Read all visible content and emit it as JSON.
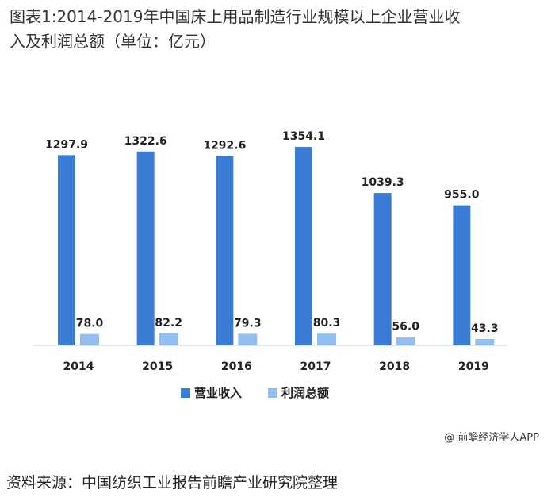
{
  "title_line1": "图表1:2014-2019年中国床上用品制造行业规模以上企业营业收",
  "title_line2": "入及利润总额（单位：亿元）",
  "chart_data": {
    "type": "bar",
    "categories": [
      "2014",
      "2015",
      "2016",
      "2017",
      "2018",
      "2019"
    ],
    "series": [
      {
        "name": "营业收入",
        "color": "#3a7bd5",
        "values": [
          1297.9,
          1322.6,
          1292.6,
          1354.1,
          1039.3,
          955.0
        ],
        "labels": [
          "1297.9",
          "1322.6",
          "1292.6",
          "1354.1",
          "1039.3",
          "955.0"
        ]
      },
      {
        "name": "利润总额",
        "color": "#92bff0",
        "values": [
          78.0,
          82.2,
          79.3,
          80.3,
          56.0,
          43.3
        ],
        "labels": [
          "78.0",
          "82.2",
          "79.3",
          "80.3",
          "56.0",
          "43.3"
        ]
      }
    ],
    "ylim": [
      0,
      1500
    ],
    "grid": false,
    "legend_position": "bottom"
  },
  "credit": "@ 前瞻经济学人APP",
  "source": "资料来源：中国纺织工业报告前瞻产业研究院整理"
}
